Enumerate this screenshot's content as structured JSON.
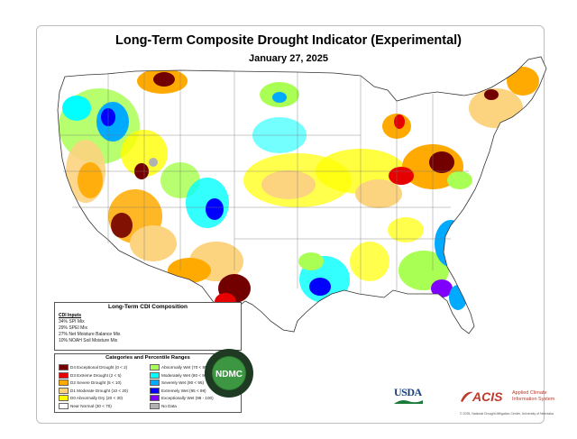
{
  "title": "Long-Term Composite Drought Indicator (Experimental)",
  "date": "January 27, 2025",
  "composition": {
    "heading": "Long-Term CDI Composition",
    "inputs_heading": "CDI Inputs",
    "inputs": [
      "34% SPI Mix",
      "29% SPEI Mix",
      "27% Net Moisture Balance Mix",
      "10% NOAH Soil Moisture Mix"
    ]
  },
  "legend": {
    "heading": "Categories and Percentile Ranges",
    "dry": [
      {
        "label": "D4 Exceptional Drought (0 < 2)",
        "color": "#730000"
      },
      {
        "label": "D3 Extreme Drought (2 < 5)",
        "color": "#e60000"
      },
      {
        "label": "D2 Severe Drought (5 < 10)",
        "color": "#ffaa00"
      },
      {
        "label": "D1 Moderate Drought (10 < 20)",
        "color": "#fcd37f"
      },
      {
        "label": "D0 Abnormally Dry (20 < 30)",
        "color": "#ffff00"
      },
      {
        "label": "Near Normal (30 < 70)",
        "color": "#ffffff"
      }
    ],
    "wet": [
      {
        "label": "Abnormally Wet (70 < 80)",
        "color": "#aaff55"
      },
      {
        "label": "Moderately Wet (80 < 90)",
        "color": "#01ffff"
      },
      {
        "label": "Severely Wet (90 < 95)",
        "color": "#00aaff"
      },
      {
        "label": "Extremely Wet (95 < 98)",
        "color": "#0000ff"
      },
      {
        "label": "Exceptionally Wet (98 - 100)",
        "color": "#7f00ff"
      },
      {
        "label": "No Data",
        "color": "#b2b2b2"
      }
    ]
  },
  "logos": {
    "ndmc_text": "NDMC",
    "ndmc_ring_top": "NATIONAL DROUGHT MITIGATION CENTER",
    "ndmc_ring_bottom": "UNIVERSITY OF NEBRASKA",
    "usda_text": "USDA",
    "acis_text": "ACIS",
    "acis_line1": "Applied Climate",
    "acis_line2": "Information System"
  },
  "copyright": "© 2025, National Drought Mitigation Center, University of Nebraska"
}
